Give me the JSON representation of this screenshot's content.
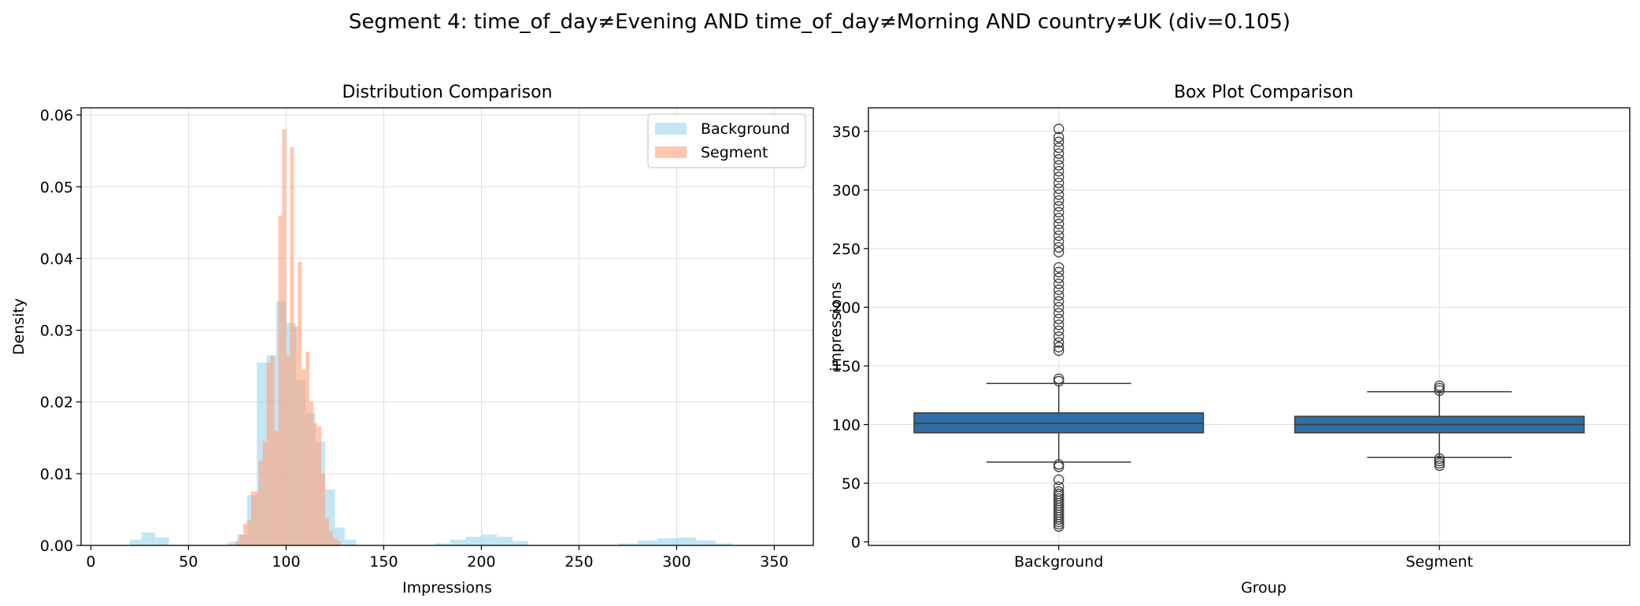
{
  "figure": {
    "suptitle": "Segment 4: time_of_day≠Evening AND time_of_day≠Morning AND country≠UK (div=0.105)"
  },
  "colors": {
    "background_hist": "#87CEEB",
    "segment_hist": "#FFA07A",
    "box_fill": "#2f6fa5",
    "box_line": "#3a3a3a",
    "grid": "#dddddd"
  },
  "chart_data": [
    {
      "type": "histogram",
      "title": "Distribution Comparison",
      "xlabel": "Impressions",
      "ylabel": "Density",
      "xlim": [
        -5,
        370
      ],
      "ylim": [
        0,
        0.061
      ],
      "xticks": [
        0,
        50,
        100,
        150,
        200,
        250,
        300,
        350
      ],
      "yticks": [
        0.0,
        0.01,
        0.02,
        0.03,
        0.04,
        0.05,
        0.06
      ],
      "ytick_labels": [
        "0.00",
        "0.01",
        "0.02",
        "0.03",
        "0.04",
        "0.05",
        "0.06"
      ],
      "grid": true,
      "legend": {
        "position": "upper right",
        "entries": [
          "Background",
          "Segment"
        ]
      },
      "series": [
        {
          "name": "Background",
          "bins": [
            [
              20,
              26,
              0.0008
            ],
            [
              26,
              33,
              0.0018
            ],
            [
              33,
              40,
              0.0011
            ],
            [
              70,
              75,
              0.0005
            ],
            [
              75,
              80,
              0.0015
            ],
            [
              80,
              85,
              0.007
            ],
            [
              85,
              90,
              0.0255
            ],
            [
              90,
              95,
              0.0265
            ],
            [
              95,
              100,
              0.034
            ],
            [
              100,
              105,
              0.031
            ],
            [
              105,
              110,
              0.023
            ],
            [
              110,
              115,
              0.0185
            ],
            [
              115,
              120,
              0.0145
            ],
            [
              120,
              125,
              0.0078
            ],
            [
              125,
              130,
              0.0025
            ],
            [
              130,
              136,
              0.0008
            ],
            [
              176,
              184,
              0.0003
            ],
            [
              184,
              192,
              0.0008
            ],
            [
              192,
              200,
              0.0012
            ],
            [
              200,
              208,
              0.0015
            ],
            [
              208,
              216,
              0.0012
            ],
            [
              216,
              224,
              0.0006
            ],
            [
              270,
              280,
              0.0003
            ],
            [
              280,
              290,
              0.0007
            ],
            [
              290,
              300,
              0.001
            ],
            [
              300,
              310,
              0.0011
            ],
            [
              310,
              320,
              0.0007
            ],
            [
              320,
              328,
              0.0003
            ]
          ]
        },
        {
          "name": "Segment",
          "bins": [
            [
              74,
              76,
              0.0006
            ],
            [
              76,
              78,
              0.0015
            ],
            [
              78,
              80,
              0.003
            ],
            [
              80,
              82,
              0.0035
            ],
            [
              82,
              84,
              0.0075
            ],
            [
              84,
              86,
              0.0075
            ],
            [
              86,
              88,
              0.0118
            ],
            [
              88,
              90,
              0.0145
            ],
            [
              90,
              92,
              0.0255
            ],
            [
              92,
              94,
              0.0265
            ],
            [
              94,
              96,
              0.016
            ],
            [
              96,
              98,
              0.046
            ],
            [
              98,
              100,
              0.058
            ],
            [
              100,
              102,
              0.0265
            ],
            [
              102,
              104,
              0.0555
            ],
            [
              104,
              106,
              0.0305
            ],
            [
              106,
              108,
              0.0395
            ],
            [
              108,
              110,
              0.0245
            ],
            [
              110,
              112,
              0.027
            ],
            [
              112,
              114,
              0.02
            ],
            [
              114,
              116,
              0.017
            ],
            [
              116,
              118,
              0.0166
            ],
            [
              118,
              120,
              0.01
            ],
            [
              120,
              122,
              0.0038
            ],
            [
              122,
              124,
              0.002
            ],
            [
              124,
              126,
              0.001
            ],
            [
              126,
              128,
              0.0006
            ]
          ]
        }
      ]
    },
    {
      "type": "box",
      "title": "Box Plot Comparison",
      "xlabel": "Group",
      "ylabel": "impressions",
      "categories": [
        "Background",
        "Segment"
      ],
      "ylim": [
        -3,
        370
      ],
      "yticks": [
        0,
        50,
        100,
        150,
        200,
        250,
        300,
        350
      ],
      "grid": true,
      "boxes": [
        {
          "name": "Background",
          "whisker_low": 68,
          "q1": 93,
          "median": 101,
          "q3": 110,
          "whisker_high": 135,
          "outliers": [
            13,
            15,
            17,
            19,
            21,
            23,
            25,
            27,
            29,
            31,
            33,
            35,
            37,
            39,
            41,
            43,
            47,
            53,
            64,
            66,
            137,
            139,
            163,
            166,
            170,
            175,
            180,
            185,
            190,
            195,
            200,
            205,
            210,
            215,
            220,
            225,
            230,
            234,
            247,
            251,
            256,
            261,
            266,
            271,
            276,
            281,
            286,
            291,
            296,
            301,
            306,
            311,
            316,
            321,
            326,
            331,
            336,
            341,
            345,
            352
          ]
        },
        {
          "name": "Segment",
          "whisker_low": 72,
          "q1": 93,
          "median": 100,
          "q3": 107,
          "whisker_high": 128,
          "outliers": [
            65,
            67,
            69,
            71,
            129,
            131,
            133
          ]
        }
      ]
    }
  ]
}
